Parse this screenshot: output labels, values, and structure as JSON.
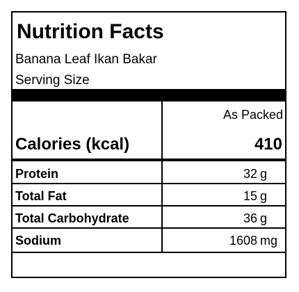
{
  "header": {
    "title": "Nutrition Facts",
    "product": "Banana Leaf Ikan Bakar",
    "serving_size_label": "Serving Size"
  },
  "table": {
    "column_header": "As Packed",
    "calories": {
      "label": "Calories (kcal)",
      "value": 410
    },
    "rows": [
      {
        "label": "Protein",
        "value": 32,
        "unit": "g"
      },
      {
        "label": "Total Fat",
        "value": 15,
        "unit": "g"
      },
      {
        "label": "Total Carbohydrate",
        "value": 36,
        "unit": "g"
      },
      {
        "label": "Sodium",
        "value": 1608,
        "unit": "mg"
      }
    ]
  }
}
